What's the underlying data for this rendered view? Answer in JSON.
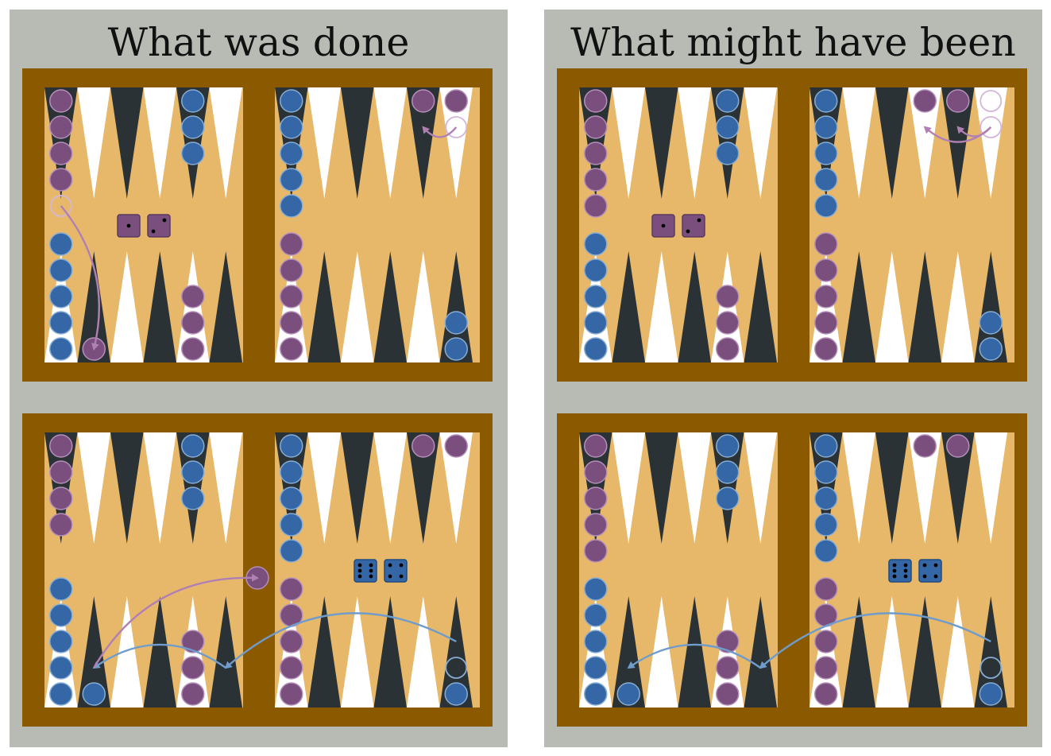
{
  "colors": {
    "page_bg": "#ffffff",
    "panel_bg": "#b8bbb4",
    "board_frame": "#8b5a00",
    "board_felt": "#e8b86a",
    "dark_point": "#2b3235",
    "light_point": "#ffffff",
    "purple_checker": "#7a4f7e",
    "purple_outline": "#b48fba",
    "blue_checker": "#3567a6",
    "blue_outline": "#86acd3",
    "purple_arrow": "#b080b5",
    "blue_arrow": "#6f9ccb"
  },
  "panels": [
    {
      "title": "What was done",
      "boards": [
        {
          "name": "done-before",
          "dice": {
            "color": "purple",
            "values": [
              1,
              2
            ]
          },
          "points_top": [
            [
              "p",
              "p",
              "p",
              "p"
            ],
            [],
            [],
            [],
            [
              "b",
              "b",
              "b"
            ],
            [],
            [
              "b",
              "b",
              "b",
              "b",
              "b"
            ],
            [],
            [],
            [],
            [
              "p"
            ],
            [
              "p"
            ]
          ],
          "points_bottom": [
            [
              "b",
              "b",
              "b",
              "b",
              "b"
            ],
            [
              "p"
            ],
            [],
            [],
            [
              "p",
              "p",
              "p"
            ],
            [],
            [
              "p",
              "p",
              "p",
              "p",
              "p"
            ],
            [],
            [],
            [],
            [],
            [
              "b",
              "b"
            ]
          ],
          "bar": [],
          "ghosts": [
            {
              "zone": "top",
              "point": 0,
              "slot": 4,
              "color": "p"
            },
            {
              "zone": "top",
              "point": 11,
              "slot": 1,
              "color": "p"
            }
          ],
          "arrows": [
            {
              "color": "purple",
              "from": [
                "top",
                0,
                4
              ],
              "to": [
                "bottom",
                1,
                0
              ],
              "bend": -0.25
            },
            {
              "color": "purple",
              "from": [
                "top",
                11,
                1
              ],
              "to": [
                "top",
                10,
                1
              ],
              "bend": -0.6
            }
          ]
        },
        {
          "name": "done-after",
          "dice": {
            "color": "blue",
            "values": [
              6,
              4
            ]
          },
          "points_top": [
            [
              "p",
              "p",
              "p",
              "p"
            ],
            [],
            [],
            [],
            [
              "b",
              "b",
              "b"
            ],
            [],
            [
              "b",
              "b",
              "b",
              "b",
              "b"
            ],
            [],
            [],
            [],
            [
              "p"
            ],
            [
              "p"
            ]
          ],
          "points_bottom": [
            [
              "b",
              "b",
              "b",
              "b",
              "b"
            ],
            [
              "b"
            ],
            [],
            [],
            [
              "p",
              "p",
              "p"
            ],
            [],
            [
              "p",
              "p",
              "p",
              "p",
              "p"
            ],
            [],
            [],
            [],
            [],
            [
              "b"
            ]
          ],
          "bar": [
            "p"
          ],
          "ghosts": [
            {
              "zone": "bottom",
              "point": 11,
              "slot": 1,
              "color": "b"
            }
          ],
          "arrows": [
            {
              "color": "blue",
              "from": [
                "bottom",
                11,
                2
              ],
              "to": [
                "bottom",
                5,
                1
              ],
              "bend": 0.35
            },
            {
              "color": "blue",
              "from": [
                "bottom",
                5,
                1
              ],
              "to": [
                "bottom",
                1,
                1
              ],
              "bend": 0.35
            },
            {
              "color": "purple",
              "from": [
                "bottom",
                1,
                1
              ],
              "to": [
                "bar",
                0,
                0
              ],
              "bend": -0.3
            }
          ]
        }
      ]
    },
    {
      "title": "What might have been",
      "boards": [
        {
          "name": "might-before",
          "dice": {
            "color": "purple",
            "values": [
              1,
              2
            ]
          },
          "points_top": [
            [
              "p",
              "p",
              "p",
              "p",
              "p"
            ],
            [],
            [],
            [],
            [
              "b",
              "b",
              "b"
            ],
            [],
            [
              "b",
              "b",
              "b",
              "b",
              "b"
            ],
            [],
            [],
            [
              "p"
            ],
            [
              "p"
            ],
            []
          ],
          "points_bottom": [
            [
              "b",
              "b",
              "b",
              "b",
              "b"
            ],
            [],
            [],
            [],
            [
              "p",
              "p",
              "p"
            ],
            [],
            [
              "p",
              "p",
              "p",
              "p",
              "p"
            ],
            [],
            [],
            [],
            [],
            [
              "b",
              "b"
            ]
          ],
          "bar": [],
          "ghosts": [
            {
              "zone": "top",
              "point": 11,
              "slot": 0,
              "color": "p"
            },
            {
              "zone": "top",
              "point": 11,
              "slot": 1,
              "color": "p"
            }
          ],
          "arrows": [
            {
              "color": "purple",
              "from": [
                "top",
                11,
                1
              ],
              "to": [
                "top",
                9,
                1
              ],
              "bend": -0.45
            },
            {
              "color": "purple",
              "from": [
                "top",
                11,
                1
              ],
              "to": [
                "top",
                10,
                1
              ],
              "bend": -0.55
            }
          ]
        },
        {
          "name": "might-after",
          "dice": {
            "color": "blue",
            "values": [
              6,
              4
            ]
          },
          "points_top": [
            [
              "p",
              "p",
              "p",
              "p",
              "p"
            ],
            [],
            [],
            [],
            [
              "b",
              "b",
              "b"
            ],
            [],
            [
              "b",
              "b",
              "b",
              "b",
              "b"
            ],
            [],
            [],
            [
              "p"
            ],
            [
              "p"
            ],
            []
          ],
          "points_bottom": [
            [
              "b",
              "b",
              "b",
              "b",
              "b"
            ],
            [
              "b"
            ],
            [],
            [],
            [
              "p",
              "p",
              "p"
            ],
            [],
            [
              "p",
              "p",
              "p",
              "p",
              "p"
            ],
            [],
            [],
            [],
            [],
            [
              "b"
            ]
          ],
          "bar": [],
          "ghosts": [
            {
              "zone": "bottom",
              "point": 11,
              "slot": 1,
              "color": "b"
            }
          ],
          "arrows": [
            {
              "color": "blue",
              "from": [
                "bottom",
                11,
                2
              ],
              "to": [
                "bottom",
                5,
                1
              ],
              "bend": 0.35
            },
            {
              "color": "blue",
              "from": [
                "bottom",
                5,
                1
              ],
              "to": [
                "bottom",
                1,
                1
              ],
              "bend": 0.35
            }
          ]
        }
      ]
    }
  ]
}
